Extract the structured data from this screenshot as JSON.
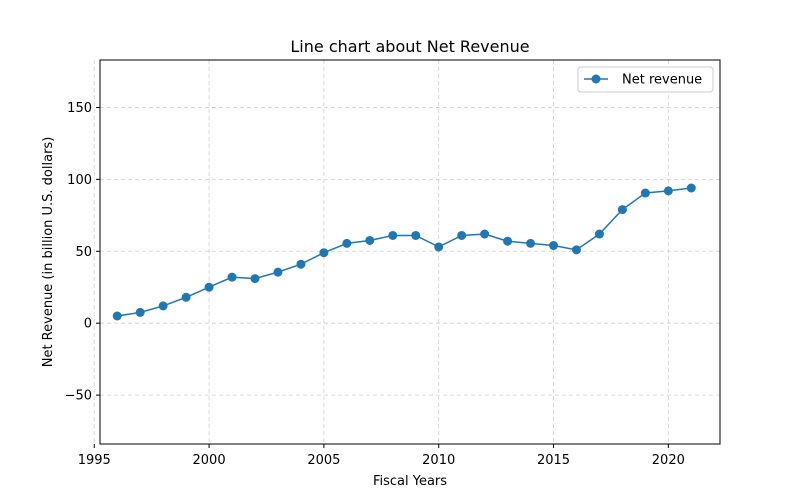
{
  "chart_data": {
    "type": "line",
    "title": "Line chart about Net Revenue",
    "xlabel": "Fiscal Years",
    "ylabel": "Net Revenue (in billion U.S. dollars)",
    "xlim": [
      1995.25,
      2022.25
    ],
    "ylim": [
      -84,
      183
    ],
    "xticks": [
      1995,
      2000,
      2005,
      2010,
      2015,
      2020
    ],
    "yticks": [
      -50,
      0,
      50,
      100,
      150
    ],
    "xtick_labels": [
      "1995",
      "2000",
      "2005",
      "2010",
      "2015",
      "2020"
    ],
    "ytick_labels": [
      "−50",
      "0",
      "50",
      "100",
      "150"
    ],
    "grid": true,
    "legend_position": "top-right",
    "series": [
      {
        "name": "Net revenue",
        "color": "#1f77b4",
        "x": [
          1996,
          1997,
          1998,
          1999,
          2000,
          2001,
          2002,
          2003,
          2004,
          2005,
          2006,
          2007,
          2008,
          2009,
          2010,
          2011,
          2012,
          2013,
          2014,
          2015,
          2016,
          2017,
          2018,
          2019,
          2020,
          2021
        ],
        "y": [
          5,
          7.5,
          12,
          18,
          25,
          32,
          31,
          35.5,
          41,
          49,
          55.5,
          57.5,
          61,
          61,
          53,
          61,
          62,
          57,
          55.5,
          54,
          51,
          62,
          79,
          90.5,
          92,
          94
        ]
      }
    ]
  }
}
